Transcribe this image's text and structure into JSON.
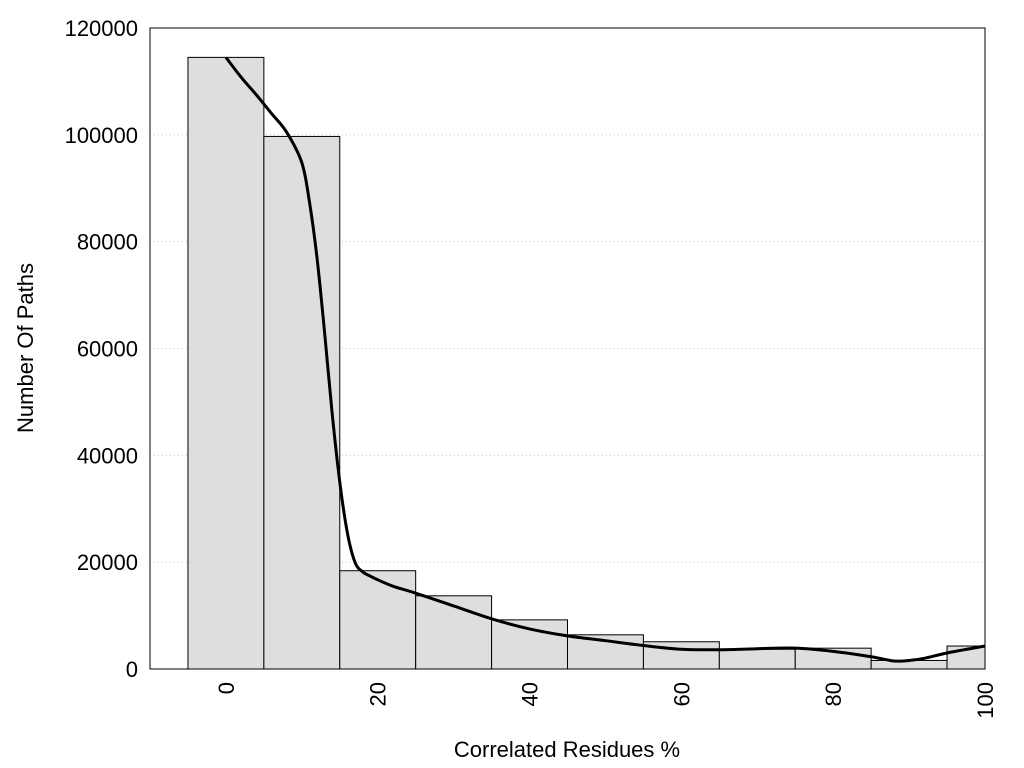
{
  "chart_data": {
    "type": "bar",
    "title": "",
    "xlabel": "Correlated Residues %",
    "ylabel": "Number Of Paths",
    "xlim": [
      -10,
      100
    ],
    "ylim": [
      0,
      120000
    ],
    "x_ticks": [
      "0",
      "20",
      "40",
      "60",
      "80",
      "100"
    ],
    "x_tick_values": [
      0,
      20,
      40,
      60,
      80,
      100
    ],
    "y_ticks": [
      "0",
      "20000",
      "40000",
      "60000",
      "80000",
      "100000",
      "120000"
    ],
    "y_tick_values": [
      0,
      20000,
      40000,
      60000,
      80000,
      100000,
      120000
    ],
    "grid": "horizontal dotted",
    "bin_width": 10,
    "bars": [
      {
        "x": 0,
        "value": 114500
      },
      {
        "x": 10,
        "value": 99700
      },
      {
        "x": 20,
        "value": 18400
      },
      {
        "x": 30,
        "value": 13700
      },
      {
        "x": 40,
        "value": 9200
      },
      {
        "x": 50,
        "value": 6400
      },
      {
        "x": 60,
        "value": 5100
      },
      {
        "x": 70,
        "value": 3700
      },
      {
        "x": 80,
        "value": 3900
      },
      {
        "x": 90,
        "value": 1600
      },
      {
        "x": 100,
        "value": 4300
      }
    ],
    "curve": {
      "x": [
        0,
        2,
        4,
        6,
        8,
        10,
        11,
        12,
        13,
        14,
        15,
        16,
        17,
        18,
        19,
        20,
        22,
        25,
        30,
        35,
        40,
        45,
        50,
        55,
        60,
        65,
        70,
        75,
        80,
        85,
        88,
        90,
        92,
        95,
        100
      ],
      "y": [
        114500,
        110800,
        107500,
        104000,
        100500,
        94800,
        87500,
        77000,
        63000,
        47800,
        35000,
        25500,
        20000,
        18200,
        17400,
        16700,
        15500,
        14200,
        11800,
        9400,
        7500,
        6200,
        5300,
        4400,
        3700,
        3600,
        3800,
        3900,
        3300,
        2300,
        1500,
        1600,
        2000,
        3000,
        4300
      ]
    },
    "bar_fill": "#dedede",
    "bar_stroke": "#000000",
    "curve_color": "#000000"
  }
}
